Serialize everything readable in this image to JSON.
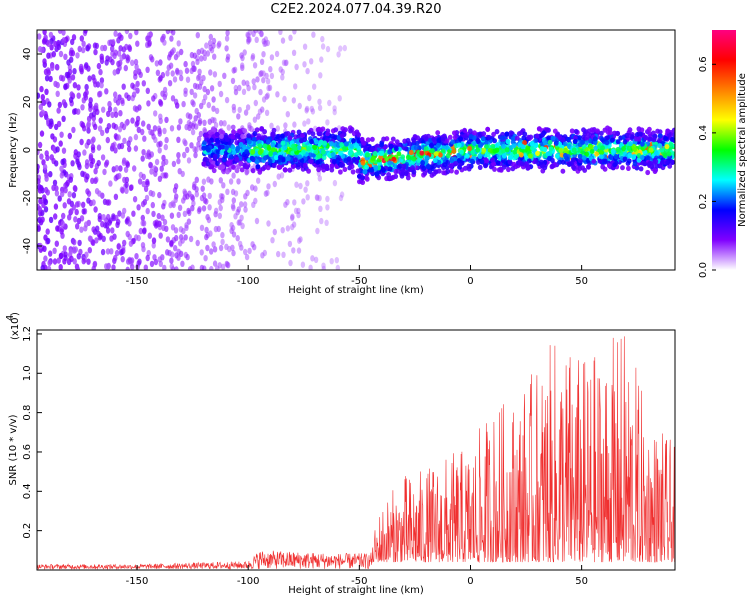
{
  "title": "C2E2.2024.077.04.39.R20",
  "chart_data": [
    {
      "type": "heatmap",
      "xlabel": "Height of straight line (km)",
      "ylabel": "Frequency (Hz)",
      "xlim": [
        -195,
        92
      ],
      "ylim": [
        -50,
        50
      ],
      "x_ticks": [
        -150,
        -100,
        -50,
        0,
        50
      ],
      "y_ticks": [
        -40,
        -20,
        0,
        20,
        40
      ],
      "grid": false,
      "colorbar": {
        "label": "Normalized spectral amplitude",
        "range": [
          0.0,
          0.7
        ],
        "ticks": [
          "0.0",
          "0.2",
          "0.4",
          "0.6"
        ],
        "colors": [
          "#ffffff",
          "#8000ff",
          "#0000ff",
          "#00ffff",
          "#00ff00",
          "#ffff00",
          "#ff8000",
          "#ff0000",
          "#ff0080"
        ]
      },
      "features": {
        "noise_region_x": [
          -195,
          -55
        ],
        "band_center_hz": 0,
        "band_halfwidth_hz": 8,
        "band_start_x": -120,
        "bright_segment": {
          "x": [
            -50,
            0
          ],
          "freq": [
            -5,
            0
          ]
        }
      }
    },
    {
      "type": "line",
      "xlabel": "Height of straight line (km)",
      "ylabel": "SNR (10 * v/v)",
      "y_scale_label": "(x10",
      "y_scale_exponent": "4",
      "xlim": [
        -195,
        92
      ],
      "ylim": [
        0,
        1.22
      ],
      "x_ticks": [
        -150,
        -100,
        -50,
        0,
        50
      ],
      "y_ticks": [
        "0.2",
        "0.4",
        "0.6",
        "0.8",
        "1.0",
        "1.2"
      ],
      "color": "#f03030",
      "envelope": {
        "x": [
          -195,
          -150,
          -100,
          -95,
          -60,
          -45,
          -40,
          -30,
          -20,
          -10,
          0,
          10,
          20,
          30,
          40,
          50,
          60,
          70,
          80,
          92
        ],
        "y_max": [
          0.03,
          0.03,
          0.05,
          0.12,
          0.1,
          0.1,
          0.3,
          0.45,
          0.48,
          0.55,
          0.6,
          0.8,
          0.85,
          1.0,
          1.18,
          1.05,
          1.1,
          1.21,
          0.75,
          0.6
        ]
      }
    }
  ]
}
